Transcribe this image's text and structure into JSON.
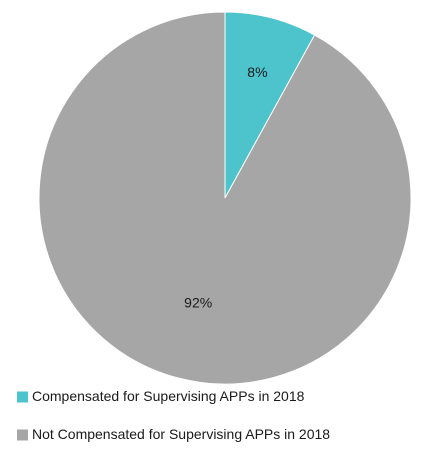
{
  "chart_data": {
    "type": "pie",
    "slices": [
      {
        "label": "Compensated for Supervising APPs in 2018",
        "value": 8,
        "display": "8%",
        "color": "#4dc3cc"
      },
      {
        "label": "Not Compensated for Supervising APPs in 2018",
        "value": 92,
        "display": "92%",
        "color": "#a6a6a6"
      }
    ],
    "start": "12 o'clock",
    "direction": "clockwise",
    "legend": "bottom"
  }
}
